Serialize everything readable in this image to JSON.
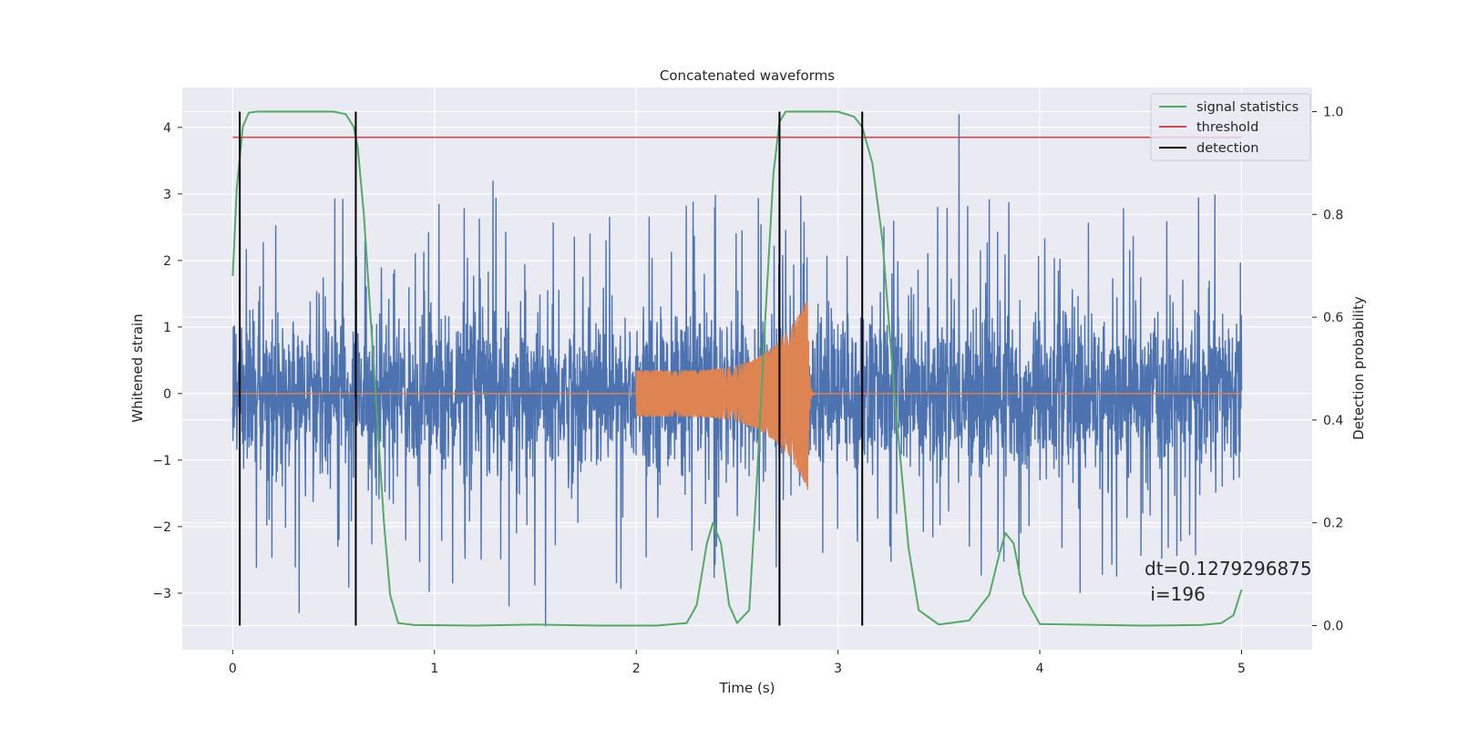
{
  "chart_data": {
    "type": "line",
    "title": "Concatenated waveforms",
    "xlabel": "Time (s)",
    "ylabel": "Whitened strain",
    "y2label": "Detection probability",
    "xlim": [
      -0.25,
      5.35
    ],
    "ylim": [
      -3.85,
      4.6
    ],
    "y2lim": [
      -0.047,
      1.047
    ],
    "xticks": [
      0,
      1,
      2,
      3,
      4,
      5
    ],
    "xtick_labels": [
      "0",
      "1",
      "2",
      "3",
      "4",
      "5"
    ],
    "yticks": [
      -3,
      -2,
      -1,
      0,
      1,
      2,
      3,
      4
    ],
    "ytick_labels": [
      "−3",
      "−2",
      "−1",
      "0",
      "1",
      "2",
      "3",
      "4"
    ],
    "y2ticks": [
      0.0,
      0.2,
      0.4,
      0.6,
      0.8,
      1.0
    ],
    "y2tick_labels": [
      "0.0",
      "0.2",
      "0.4",
      "0.6",
      "0.8",
      "1.0"
    ],
    "grid": true,
    "legend": {
      "position": "top-right",
      "entries": [
        {
          "label": "signal statistics",
          "color": "#55a868"
        },
        {
          "label": "threshold",
          "color": "#c44e52"
        },
        {
          "label": "detection",
          "color": "#000000"
        }
      ]
    },
    "colors": {
      "noise": "#4c72b0",
      "template": "#dd8452",
      "signal_statistics": "#55a868",
      "threshold": "#c44e52",
      "detection": "#000000",
      "axes_face": "#eaeaf2",
      "grid": "#ffffff"
    },
    "series": [
      {
        "name": "",
        "role": "noise",
        "axis": "left",
        "x_range": [
          0,
          5
        ],
        "envelope_typical": [
          -1.4,
          1.6
        ],
        "notable_values": [
          {
            "x": 0.33,
            "y": -3.3
          },
          {
            "x": 1.37,
            "y": -3.2
          },
          {
            "x": 1.55,
            "y": -3.5
          },
          {
            "x": 3.6,
            "y": 4.2
          },
          {
            "x": 1.29,
            "y": 3.2
          },
          {
            "x": 4.2,
            "y": -3.0
          }
        ]
      },
      {
        "name": "",
        "role": "template",
        "axis": "left",
        "start": 2.0,
        "end": 2.85,
        "amplitude_start": 0.35,
        "amplitude_peak": 1.45,
        "value_elsewhere": 0
      },
      {
        "name": "signal statistics",
        "axis": "right",
        "x": [
          0,
          0.02,
          0.05,
          0.08,
          0.12,
          0.2,
          0.3,
          0.4,
          0.5,
          0.56,
          0.6,
          0.62,
          0.65,
          0.7,
          0.75,
          0.78,
          0.82,
          0.9,
          1.2,
          1.5,
          1.8,
          2.1,
          2.25,
          2.3,
          2.35,
          2.38,
          2.42,
          2.46,
          2.5,
          2.56,
          2.6,
          2.64,
          2.68,
          2.71,
          2.74,
          2.78,
          2.85,
          3.0,
          3.08,
          3.12,
          3.17,
          3.22,
          3.28,
          3.35,
          3.4,
          3.5,
          3.65,
          3.75,
          3.8,
          3.83,
          3.87,
          3.92,
          4.0,
          4.5,
          4.8,
          4.9,
          4.96,
          5.0
        ],
        "y": [
          0.68,
          0.85,
          0.97,
          0.998,
          1.0,
          1.0,
          1.0,
          1.0,
          1.0,
          0.995,
          0.97,
          0.93,
          0.8,
          0.5,
          0.2,
          0.06,
          0.005,
          0.001,
          0.0,
          0.002,
          0.0,
          0.0,
          0.005,
          0.04,
          0.16,
          0.2,
          0.16,
          0.04,
          0.005,
          0.03,
          0.3,
          0.6,
          0.88,
          0.98,
          1.0,
          1.0,
          1.0,
          1.0,
          0.99,
          0.97,
          0.9,
          0.75,
          0.45,
          0.15,
          0.03,
          0.002,
          0.01,
          0.06,
          0.14,
          0.18,
          0.16,
          0.06,
          0.003,
          0.0,
          0.001,
          0.005,
          0.02,
          0.07
        ]
      },
      {
        "name": "threshold",
        "axis": "right",
        "x": [
          0,
          5
        ],
        "y": [
          0.95,
          0.95
        ]
      }
    ],
    "detections": [
      0.035,
      0.61,
      2.71,
      3.12
    ],
    "detection_range": [
      0,
      1
    ],
    "annotation": {
      "line1": "dt=0.1279296875",
      "line2": " i=196",
      "x": 4.5,
      "y": -2.6
    }
  }
}
